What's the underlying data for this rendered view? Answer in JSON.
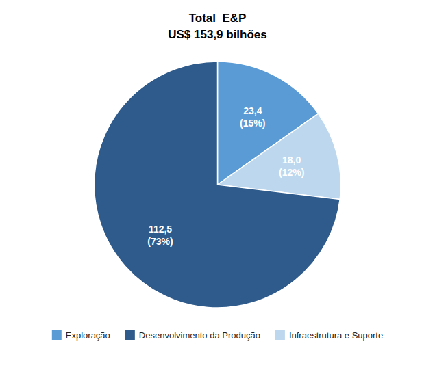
{
  "chart_data": {
    "type": "pie",
    "title": "Total  E&P",
    "subtitle": "US$ 153,9 bilhões",
    "categories": [
      "Exploração",
      "Infraestrutura e Suporte",
      "Desenvolvimento da Produção"
    ],
    "values": [
      23.4,
      18.0,
      112.5
    ],
    "value_labels": [
      "23,4",
      "18,0",
      "112,5"
    ],
    "shares": [
      15,
      12,
      73
    ],
    "share_labels": [
      "(15%)",
      "(12%)",
      "(73%)"
    ],
    "colors": [
      "#5B9BD5",
      "#BDD7EE",
      "#2E5B8C"
    ],
    "legend_entries": [
      "Exploração",
      "Desenvolvimento da Produção",
      "Infraestrutura e Suporte"
    ],
    "legend": "bottom",
    "data_labels": true
  }
}
